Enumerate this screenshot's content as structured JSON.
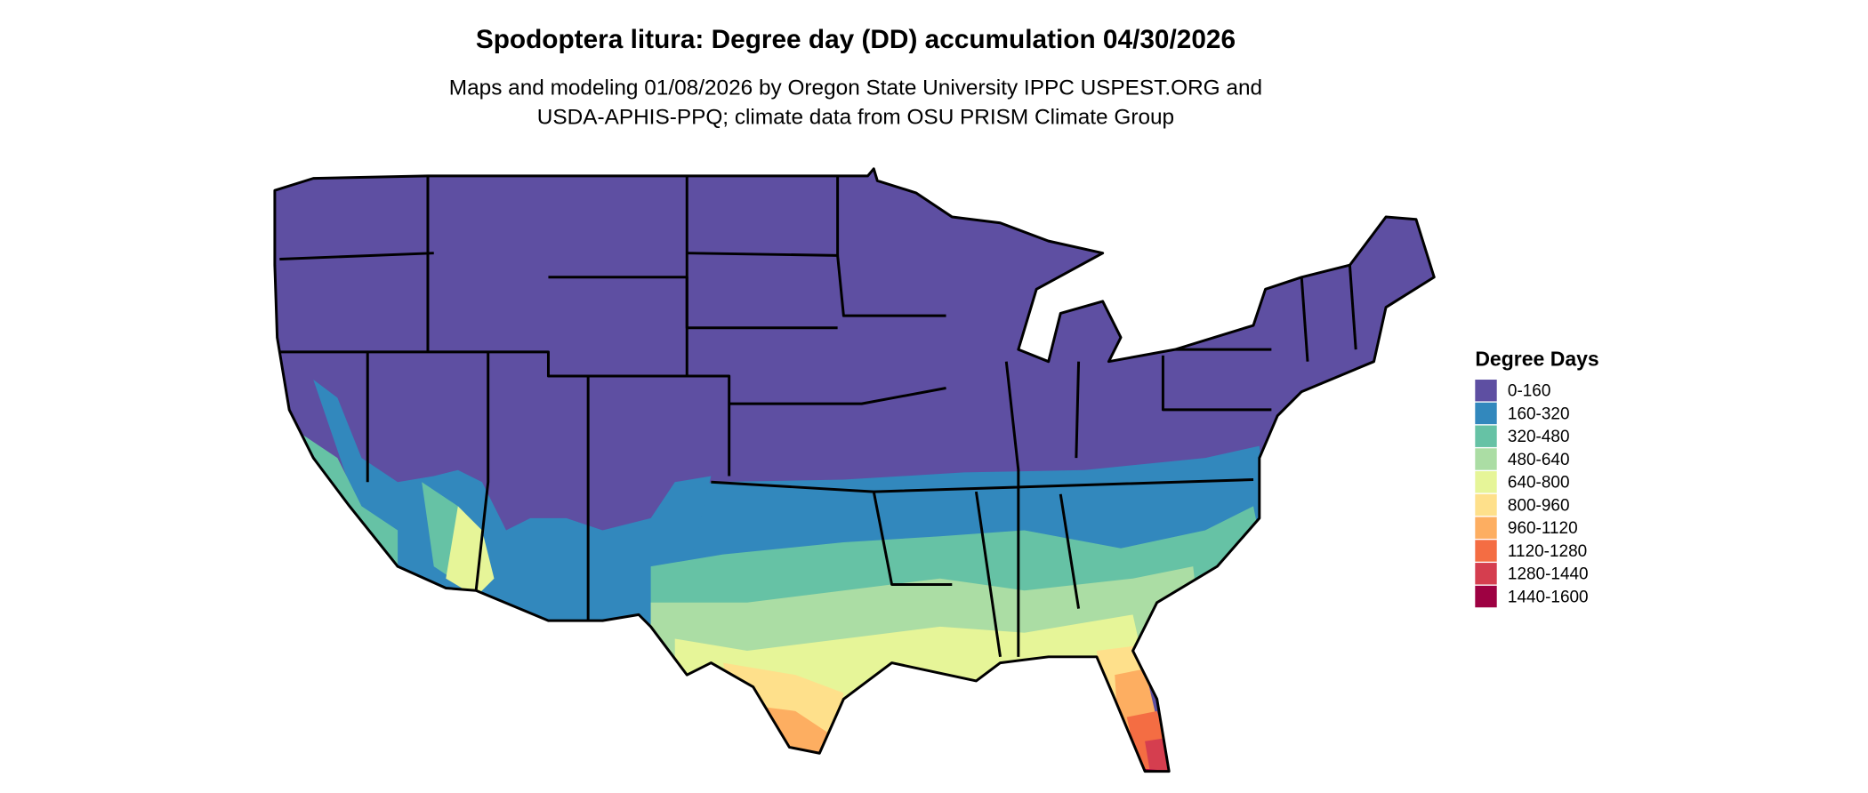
{
  "header": {
    "title": "Spodoptera litura: Degree day (DD) accumulation 04/30/2026",
    "subtitle_lines": [
      "Maps and modeling 01/08/2026 by Oregon State University IPPC USPEST.ORG and",
      "USDA-APHIS-PPQ; climate data from OSU PRISM Climate Group"
    ]
  },
  "legend": {
    "title": "Degree Days",
    "items": [
      {
        "label": "0-160",
        "color": "#5e4fa2"
      },
      {
        "label": "160-320",
        "color": "#3288bd"
      },
      {
        "label": "320-480",
        "color": "#66c2a5"
      },
      {
        "label": "480-640",
        "color": "#abdda4"
      },
      {
        "label": "640-800",
        "color": "#e6f598"
      },
      {
        "label": "800-960",
        "color": "#fee08b"
      },
      {
        "label": "960-1120",
        "color": "#fdae61"
      },
      {
        "label": "1120-1280",
        "color": "#f46d43"
      },
      {
        "label": "1280-1440",
        "color": "#d53e4f"
      },
      {
        "label": "1440-1600",
        "color": "#9e0142"
      }
    ]
  }
}
